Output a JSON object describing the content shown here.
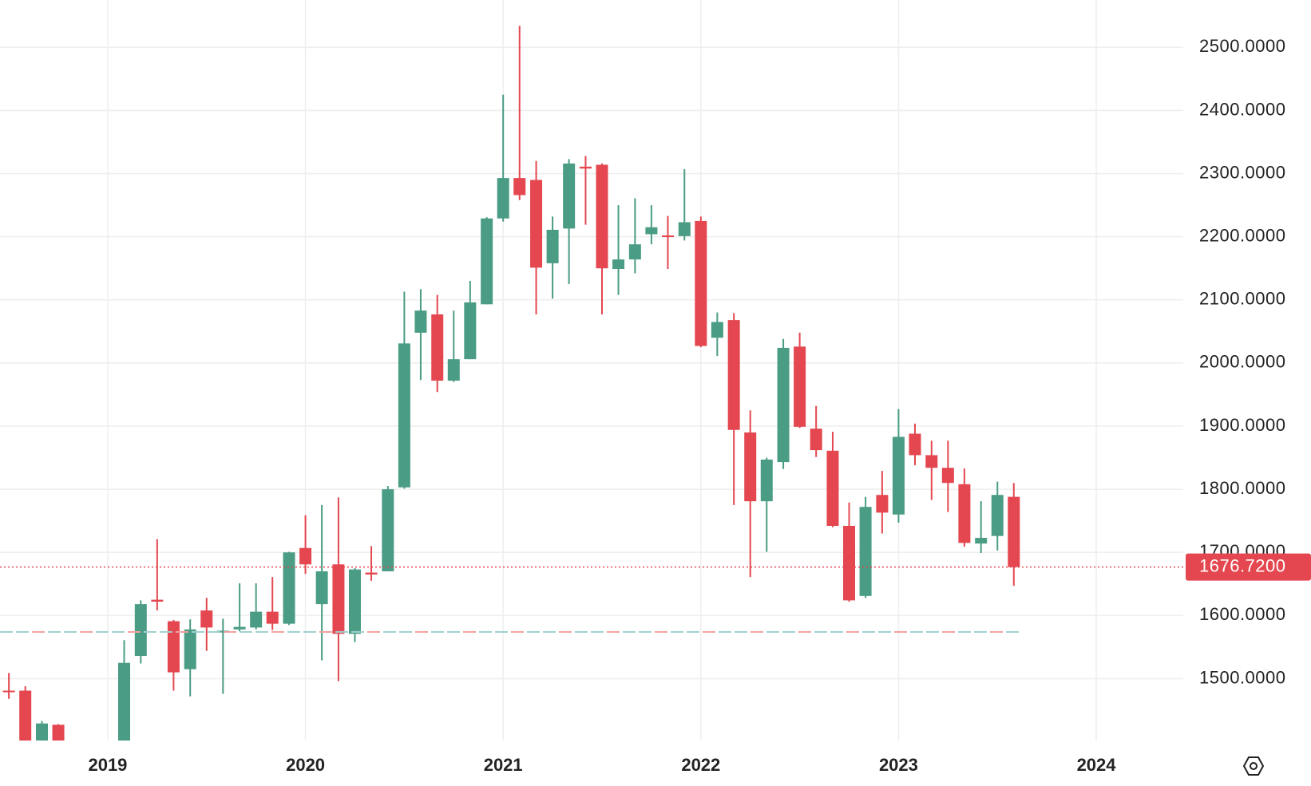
{
  "chart_data": {
    "type": "candlestick",
    "x": [
      2018.5,
      2018.583,
      2018.667,
      2018.75,
      2019.083,
      2019.167,
      2019.25,
      2019.333,
      2019.417,
      2019.5,
      2019.583,
      2019.667,
      2019.75,
      2019.833,
      2019.917,
      2020,
      2020.083,
      2020.167,
      2020.25,
      2020.333,
      2020.417,
      2020.5,
      2020.583,
      2020.667,
      2020.75,
      2020.833,
      2020.917,
      2021,
      2021.083,
      2021.167,
      2021.25,
      2021.333,
      2021.417,
      2021.5,
      2021.583,
      2021.667,
      2021.75,
      2021.833,
      2021.917,
      2022,
      2022.083,
      2022.167,
      2022.25,
      2022.333,
      2022.417,
      2022.5,
      2022.583,
      2022.667,
      2022.75,
      2022.833,
      2022.917,
      2023,
      2023.083,
      2023.167,
      2023.25,
      2023.333,
      2023.417,
      2023.5,
      2023.583
    ],
    "open": [
      1481,
      1481,
      1385,
      1427,
      1390,
      1536,
      1625,
      1591,
      1515,
      1608,
      1573,
      1578,
      1581,
      1606,
      1587,
      1707,
      1618,
      1681,
      1571,
      1668,
      1670,
      1803,
      2048,
      2077,
      1972,
      2006,
      2093,
      2229,
      2293,
      2290,
      2158,
      2213,
      2311,
      2314,
      2149,
      2164,
      2204,
      2202,
      2201,
      2225,
      2040,
      2068,
      1890,
      1781,
      1843,
      2026,
      1896,
      1861,
      1742,
      1631,
      1791,
      1760,
      1888,
      1854,
      1834,
      1808,
      1714,
      1726,
      1788
    ],
    "high": [
      1509,
      1488,
      1433,
      1428,
      1561,
      1624,
      1721,
      1593,
      1594,
      1628,
      1595,
      1651,
      1651,
      1661,
      1701,
      1759,
      1775,
      1787,
      1675,
      1710,
      1805,
      2113,
      2117,
      2108,
      2083,
      2130,
      2231,
      2425,
      2534,
      2320,
      2232,
      2323,
      2328,
      2316,
      2250,
      2261,
      2250,
      2233,
      2307,
      2232,
      2080,
      2079,
      1925,
      1850,
      2038,
      2048,
      1932,
      1891,
      1779,
      1788,
      1829,
      1927,
      1904,
      1877,
      1877,
      1833,
      1781,
      1812,
      1810
    ],
    "low": [
      1468,
      1370,
      1370,
      1375,
      1385,
      1524,
      1608,
      1481,
      1472,
      1544,
      1476,
      1575,
      1578,
      1577,
      1585,
      1666,
      1529,
      1496,
      1558,
      1655,
      1670,
      1801,
      1973,
      1954,
      1970,
      2006,
      2093,
      2224,
      2258,
      2077,
      2102,
      2125,
      2219,
      2077,
      2108,
      2142,
      2188,
      2149,
      2194,
      2025,
      2011,
      1775,
      1661,
      1701,
      1832,
      1897,
      1851,
      1740,
      1622,
      1628,
      1730,
      1747,
      1838,
      1783,
      1764,
      1709,
      1699,
      1703,
      1647
    ],
    "close": [
      1479,
      1380,
      1429,
      1380,
      1525,
      1618,
      1622,
      1510,
      1578,
      1581,
      1576,
      1582,
      1606,
      1587,
      1700,
      1681,
      1670,
      1571,
      1673,
      1665,
      1800,
      2031,
      2083,
      1972,
      2006,
      2096,
      2229,
      2293,
      2266,
      2151,
      2211,
      2316,
      2308,
      2150,
      2164,
      2188,
      2215,
      2200,
      2223,
      2027,
      2065,
      1894,
      1781,
      1847,
      2024,
      1899,
      1862,
      1742,
      1624,
      1772,
      1763,
      1883,
      1854,
      1834,
      1810,
      1715,
      1723,
      1791,
      1676.72
    ],
    "up_color": "#4a9c85",
    "down_color": "#e4474f",
    "xlim": [
      2018.455,
      2024.44
    ],
    "ylim": [
      1402,
      2575
    ],
    "xticks": [
      2019,
      2020,
      2021,
      2022,
      2023,
      2024
    ],
    "yticks": [
      {
        "value": 1500,
        "label": "1500.0000"
      },
      {
        "value": 1600,
        "label": "1600.0000"
      },
      {
        "value": 1700,
        "label": "1700.0000"
      },
      {
        "value": 1800,
        "label": "1800.0000"
      },
      {
        "value": 1900,
        "label": "1900.0000"
      },
      {
        "value": 2000,
        "label": "2000.0000"
      },
      {
        "value": 2100,
        "label": "2100.0000"
      },
      {
        "value": 2200,
        "label": "2200.0000"
      },
      {
        "value": 2300,
        "label": "2300.0000"
      },
      {
        "value": 2400,
        "label": "2400.0000"
      },
      {
        "value": 2500,
        "label": "2500.0000"
      }
    ],
    "last_price": {
      "value": 1676.72,
      "label": "1676.7200"
    },
    "reference_line": 1574,
    "grid": true
  }
}
